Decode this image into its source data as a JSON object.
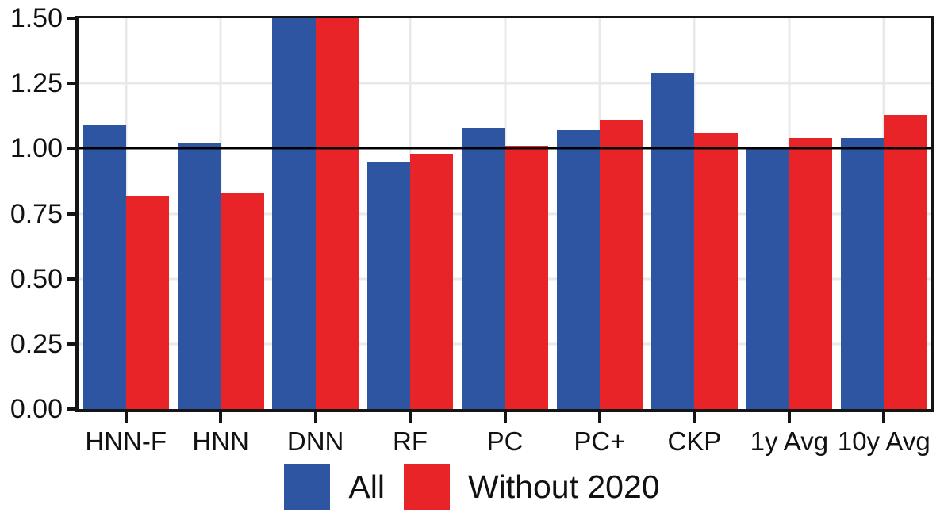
{
  "figure": {
    "background_color": "#ffffff",
    "text_color": "#111111",
    "axis_color": "#151515",
    "grid_color": "#e9e9e9",
    "reference_line_color": "#000000"
  },
  "chart_data": {
    "type": "bar",
    "title": "",
    "xlabel": "",
    "ylabel": "",
    "categories": [
      "HNN-F",
      "HNN",
      "DNN",
      "RF",
      "PC",
      "PC+",
      "CKP",
      "1y Avg",
      "10y Avg"
    ],
    "series": [
      {
        "name": "All",
        "color": "#2d55a2",
        "values": [
          1.09,
          1.02,
          1.5,
          0.95,
          1.08,
          1.07,
          1.29,
          1.0,
          1.04
        ]
      },
      {
        "name": "Without 2020",
        "color": "#e82428",
        "values": [
          0.82,
          0.83,
          1.5,
          0.98,
          1.01,
          1.11,
          1.06,
          1.04,
          1.13
        ]
      }
    ],
    "ylim": [
      0,
      1.5
    ],
    "ytick_values": [
      0,
      0.25,
      0.5,
      0.75,
      1.0,
      1.25,
      1.5
    ],
    "ytick_labels": [
      "0.00",
      "0.25",
      "0.50",
      "0.75",
      "1.00",
      "1.25",
      "1.50"
    ],
    "reference_line": 1.0,
    "grid": "major horizontal gridlines at 0.25 steps; vertical gridlines at category centers",
    "legend_position": "bottom",
    "note": "DNN bars reach the top of the axis (clipped at 1.50)"
  }
}
